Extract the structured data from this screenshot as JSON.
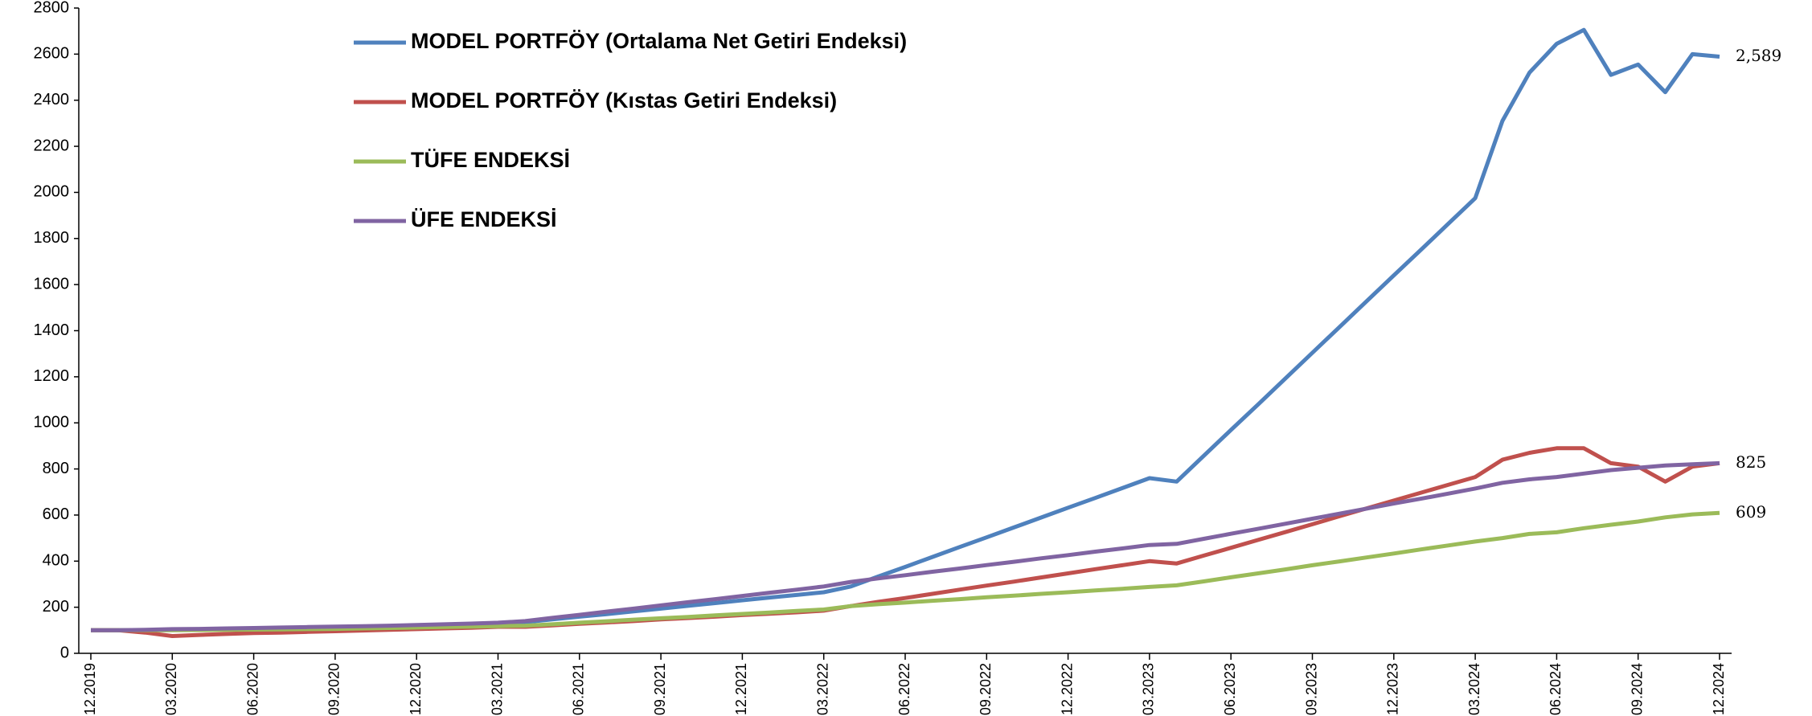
{
  "chart_data": {
    "type": "line",
    "categories": [
      "12.2019",
      null,
      null,
      "03.2020",
      null,
      null,
      "06.2020",
      null,
      null,
      "09.2020",
      null,
      null,
      "12.2020",
      null,
      null,
      "03.2021",
      null,
      null,
      "06.2021",
      null,
      null,
      "09.2021",
      null,
      null,
      "12.2021",
      null,
      null,
      "03.2022",
      null,
      null,
      "06.2022",
      null,
      null,
      "09.2022",
      null,
      null,
      "12.2022",
      null,
      null,
      "03.2023",
      null,
      null,
      "06.2023",
      null,
      null,
      "09.2023",
      null,
      null,
      "12.2023",
      null,
      null,
      "03.2024",
      null,
      null,
      "06.2024",
      null,
      null,
      "09.2024",
      null,
      null,
      "12.2024"
    ],
    "series": [
      {
        "name": "MODEL PORTFÖY (Ortalama Net Getiri Endeksi)",
        "color": "#4f81bd",
        "values": [
          100,
          100,
          100,
          101,
          103,
          105,
          107,
          109,
          111,
          113,
          115,
          117,
          119,
          122,
          125,
          128,
          135,
          147,
          159,
          170,
          182,
          194,
          206,
          218,
          230,
          242,
          253,
          265,
          290,
          333,
          375,
          418,
          461,
          503,
          546,
          589,
          632,
          674,
          717,
          760,
          745,
          857,
          969,
          1080,
          1192,
          1304,
          1416,
          1528,
          1640,
          1751,
          1863,
          1975,
          2310,
          2520,
          2645,
          2705,
          2510,
          2555,
          2435,
          2600,
          2589
        ],
        "value_labels": {
          "60": "2,589"
        }
      },
      {
        "name": "MODEL PORTFÖY (Kıstas Getiri Endeksi)",
        "color": "#c0504d",
        "values": [
          100,
          100,
          90,
          75,
          80,
          84,
          88,
          90,
          93,
          96,
          99,
          102,
          105,
          108,
          111,
          115,
          115,
          121,
          128,
          134,
          140,
          147,
          153,
          159,
          166,
          172,
          178,
          185,
          205,
          223,
          240,
          258,
          276,
          294,
          311,
          329,
          347,
          365,
          382,
          400,
          390,
          424,
          458,
          492,
          526,
          560,
          595,
          629,
          663,
          697,
          731,
          765,
          840,
          870,
          890,
          890,
          825,
          810,
          745,
          810,
          825
        ]
      },
      {
        "name": "TÜFE ENDEKSİ",
        "color": "#9bbb59",
        "values": [
          100,
          100,
          100,
          100,
          101,
          102,
          103,
          104,
          105,
          106,
          108,
          110,
          112,
          114,
          116,
          118,
          120,
          126,
          133,
          139,
          146,
          152,
          158,
          165,
          171,
          177,
          184,
          190,
          205,
          213,
          220,
          228,
          235,
          243,
          250,
          258,
          265,
          273,
          280,
          288,
          295,
          312,
          330,
          347,
          364,
          382,
          399,
          416,
          433,
          451,
          468,
          485,
          500,
          518,
          525,
          543,
          558,
          572,
          590,
          603,
          609
        ]
      },
      {
        "name": "ÜFE ENDEKSİ",
        "color": "#8064a2",
        "values": [
          100,
          100,
          102,
          105,
          106,
          108,
          110,
          112,
          114,
          116,
          118,
          120,
          123,
          126,
          129,
          133,
          140,
          154,
          167,
          181,
          194,
          208,
          222,
          235,
          249,
          263,
          276,
          290,
          310,
          325,
          339,
          354,
          368,
          383,
          397,
          412,
          426,
          441,
          455,
          470,
          475,
          497,
          519,
          540,
          562,
          584,
          606,
          628,
          650,
          671,
          693,
          715,
          740,
          755,
          765,
          780,
          795,
          805,
          815,
          820,
          825
        ]
      }
    ],
    "ylim": [
      0,
      2800
    ],
    "yticks": [
      0,
      200,
      400,
      600,
      800,
      1000,
      1200,
      1400,
      1600,
      1800,
      2000,
      2200,
      2400,
      2600,
      2800
    ],
    "grid": false,
    "legend": "top-left"
  }
}
